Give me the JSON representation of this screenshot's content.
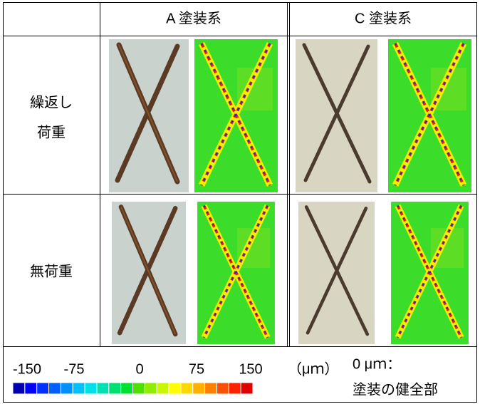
{
  "header": {
    "columns": [
      "A 塗装系",
      "C 塗装系"
    ]
  },
  "rows": [
    {
      "label": [
        "繰返し",
        "荷重"
      ]
    },
    {
      "label": [
        "無荷重"
      ]
    }
  ],
  "legend": {
    "ticks": [
      "-150",
      "-75",
      "0",
      "75",
      "150"
    ],
    "unit": "（μｍ）",
    "colors": [
      "#0000b0",
      "#0000ff",
      "#0030ff",
      "#0060ff",
      "#0090ff",
      "#00c0ff",
      "#00e0e8",
      "#00e0b0",
      "#00e070",
      "#00e030",
      "#50e000",
      "#90ec00",
      "#c8f800",
      "#ffff00",
      "#ffd800",
      "#ffb000",
      "#ff8000",
      "#ff5000",
      "#ff2000",
      "#e00000"
    ],
    "note": [
      "0 μｍ：",
      "塗装の健全部"
    ]
  }
}
